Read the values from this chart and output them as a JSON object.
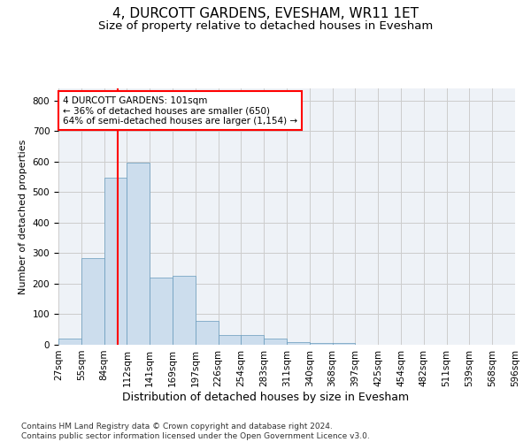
{
  "title": "4, DURCOTT GARDENS, EVESHAM, WR11 1ET",
  "subtitle": "Size of property relative to detached houses in Evesham",
  "xlabel": "Distribution of detached houses by size in Evesham",
  "ylabel": "Number of detached properties",
  "bar_color": "#ccdded",
  "bar_edge_color": "#6699bb",
  "grid_color": "#cccccc",
  "background_color": "#eef2f7",
  "vline_x_index": 2.75,
  "vline_color": "red",
  "annotation_text": "4 DURCOTT GARDENS: 101sqm\n← 36% of detached houses are smaller (650)\n64% of semi-detached houses are larger (1,154) →",
  "annotation_box_color": "white",
  "annotation_box_edge": "red",
  "counts": [
    20,
    285,
    547,
    596,
    220,
    225,
    78,
    33,
    33,
    20,
    8,
    5,
    5,
    0,
    0,
    0,
    0,
    0,
    0,
    0
  ],
  "tick_labels": [
    "27sqm",
    "55sqm",
    "84sqm",
    "112sqm",
    "141sqm",
    "169sqm",
    "197sqm",
    "226sqm",
    "254sqm",
    "283sqm",
    "311sqm",
    "340sqm",
    "368sqm",
    "397sqm",
    "425sqm",
    "454sqm",
    "482sqm",
    "511sqm",
    "539sqm",
    "568sqm",
    "596sqm"
  ],
  "ylim": [
    0,
    840
  ],
  "yticks": [
    0,
    100,
    200,
    300,
    400,
    500,
    600,
    700,
    800
  ],
  "footer_text": "Contains HM Land Registry data © Crown copyright and database right 2024.\nContains public sector information licensed under the Open Government Licence v3.0.",
  "title_fontsize": 11,
  "subtitle_fontsize": 9.5,
  "xlabel_fontsize": 9,
  "ylabel_fontsize": 8,
  "tick_fontsize": 7.5,
  "footer_fontsize": 6.5
}
